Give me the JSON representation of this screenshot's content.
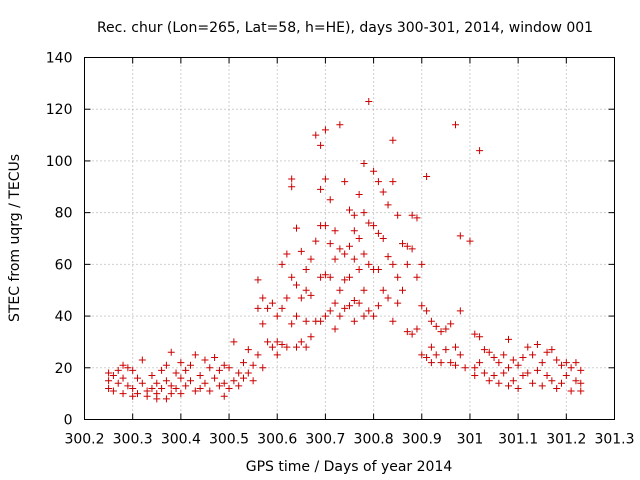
{
  "chart_data": {
    "type": "scatter",
    "title": "Rec. chur (Lon=265, Lat=58, h=HE), days 300-301, 2014, window 001",
    "xlabel": "GPS time / Days of year 2014",
    "ylabel": "STEC from uqrg / TECUs",
    "xlim": [
      300.2,
      301.3
    ],
    "ylim": [
      0,
      140
    ],
    "xticks": [
      "300.2",
      "300.3",
      "300.4",
      "300.5",
      "300.6",
      "300.7",
      "300.8",
      "300.9",
      "301",
      "301.1",
      "301.2",
      "301.3"
    ],
    "yticks": [
      "0",
      "20",
      "40",
      "60",
      "80",
      "100",
      "120",
      "140"
    ],
    "grid": true,
    "marker": "+",
    "color": "#cc0000",
    "series": [
      {
        "points": [
          [
            300.25,
            18
          ],
          [
            300.25,
            15
          ],
          [
            300.25,
            12
          ],
          [
            300.26,
            17
          ],
          [
            300.26,
            11
          ],
          [
            300.27,
            19
          ],
          [
            300.27,
            14
          ],
          [
            300.28,
            21
          ],
          [
            300.28,
            16
          ],
          [
            300.28,
            10
          ],
          [
            300.29,
            20
          ],
          [
            300.29,
            13
          ],
          [
            300.3,
            19
          ],
          [
            300.3,
            12
          ],
          [
            300.3,
            9
          ],
          [
            300.31,
            16
          ],
          [
            300.31,
            10
          ],
          [
            300.32,
            23
          ],
          [
            300.32,
            14
          ],
          [
            300.33,
            11
          ],
          [
            300.33,
            9
          ],
          [
            300.34,
            17
          ],
          [
            300.34,
            12
          ],
          [
            300.35,
            14
          ],
          [
            300.35,
            10
          ],
          [
            300.35,
            8
          ],
          [
            300.36,
            19
          ],
          [
            300.36,
            12
          ],
          [
            300.37,
            21
          ],
          [
            300.37,
            15
          ],
          [
            300.37,
            8
          ],
          [
            300.38,
            26
          ],
          [
            300.38,
            13
          ],
          [
            300.38,
            10
          ],
          [
            300.39,
            18
          ],
          [
            300.39,
            12
          ],
          [
            300.4,
            22
          ],
          [
            300.4,
            16
          ],
          [
            300.4,
            10
          ],
          [
            300.41,
            19
          ],
          [
            300.41,
            13
          ],
          [
            300.42,
            21
          ],
          [
            300.42,
            15
          ],
          [
            300.43,
            25
          ],
          [
            300.43,
            11
          ],
          [
            300.44,
            17
          ],
          [
            300.44,
            12
          ],
          [
            300.45,
            23
          ],
          [
            300.45,
            14
          ],
          [
            300.46,
            20
          ],
          [
            300.46,
            11
          ],
          [
            300.47,
            24
          ],
          [
            300.47,
            16
          ],
          [
            300.48,
            19
          ],
          [
            300.48,
            13
          ],
          [
            300.49,
            21
          ],
          [
            300.49,
            14
          ],
          [
            300.49,
            9
          ],
          [
            300.5,
            20
          ],
          [
            300.5,
            12
          ],
          [
            300.51,
            30
          ],
          [
            300.51,
            15
          ],
          [
            300.52,
            18
          ],
          [
            300.52,
            13
          ],
          [
            300.53,
            22
          ],
          [
            300.53,
            16
          ],
          [
            300.54,
            27
          ],
          [
            300.54,
            18
          ],
          [
            300.55,
            21
          ],
          [
            300.55,
            15
          ],
          [
            300.56,
            54
          ],
          [
            300.56,
            43
          ],
          [
            300.56,
            25
          ],
          [
            300.57,
            47
          ],
          [
            300.57,
            37
          ],
          [
            300.57,
            20
          ],
          [
            300.58,
            43
          ],
          [
            300.58,
            30
          ],
          [
            300.59,
            45
          ],
          [
            300.59,
            28
          ],
          [
            300.6,
            40
          ],
          [
            300.6,
            30
          ],
          [
            300.6,
            25
          ],
          [
            300.61,
            60
          ],
          [
            300.61,
            43
          ],
          [
            300.61,
            29
          ],
          [
            300.62,
            64
          ],
          [
            300.62,
            47
          ],
          [
            300.62,
            28
          ],
          [
            300.63,
            93
          ],
          [
            300.63,
            90
          ],
          [
            300.63,
            55
          ],
          [
            300.63,
            37
          ],
          [
            300.64,
            74
          ],
          [
            300.64,
            52
          ],
          [
            300.64,
            40
          ],
          [
            300.64,
            28
          ],
          [
            300.65,
            65
          ],
          [
            300.65,
            47
          ],
          [
            300.65,
            30
          ],
          [
            300.66,
            58
          ],
          [
            300.66,
            50
          ],
          [
            300.66,
            38
          ],
          [
            300.66,
            28
          ],
          [
            300.67,
            62
          ],
          [
            300.67,
            48
          ],
          [
            300.67,
            32
          ],
          [
            300.68,
            110
          ],
          [
            300.68,
            69
          ],
          [
            300.68,
            38
          ],
          [
            300.69,
            106
          ],
          [
            300.69,
            89
          ],
          [
            300.69,
            75
          ],
          [
            300.69,
            55
          ],
          [
            300.69,
            38
          ],
          [
            300.7,
            112
          ],
          [
            300.7,
            93
          ],
          [
            300.7,
            75
          ],
          [
            300.7,
            56
          ],
          [
            300.7,
            40
          ],
          [
            300.71,
            85
          ],
          [
            300.71,
            68
          ],
          [
            300.71,
            55
          ],
          [
            300.71,
            42
          ],
          [
            300.72,
            73
          ],
          [
            300.72,
            62
          ],
          [
            300.72,
            45
          ],
          [
            300.72,
            35
          ],
          [
            300.73,
            114
          ],
          [
            300.73,
            66
          ],
          [
            300.73,
            50
          ],
          [
            300.73,
            40
          ],
          [
            300.74,
            92
          ],
          [
            300.74,
            64
          ],
          [
            300.74,
            54
          ],
          [
            300.74,
            43
          ],
          [
            300.75,
            81
          ],
          [
            300.75,
            67
          ],
          [
            300.75,
            55
          ],
          [
            300.75,
            44
          ],
          [
            300.76,
            79
          ],
          [
            300.76,
            73
          ],
          [
            300.76,
            62
          ],
          [
            300.76,
            46
          ],
          [
            300.76,
            38
          ],
          [
            300.77,
            87
          ],
          [
            300.77,
            70
          ],
          [
            300.77,
            58
          ],
          [
            300.77,
            45
          ],
          [
            300.78,
            99
          ],
          [
            300.78,
            80
          ],
          [
            300.78,
            64
          ],
          [
            300.78,
            50
          ],
          [
            300.78,
            40
          ],
          [
            300.79,
            123
          ],
          [
            300.79,
            76
          ],
          [
            300.79,
            60
          ],
          [
            300.79,
            42
          ],
          [
            300.8,
            96
          ],
          [
            300.8,
            75
          ],
          [
            300.8,
            58
          ],
          [
            300.8,
            40
          ],
          [
            300.81,
            92
          ],
          [
            300.81,
            72
          ],
          [
            300.81,
            58
          ],
          [
            300.81,
            44
          ],
          [
            300.82,
            88
          ],
          [
            300.82,
            70
          ],
          [
            300.82,
            50
          ],
          [
            300.83,
            83
          ],
          [
            300.83,
            63
          ],
          [
            300.83,
            47
          ],
          [
            300.84,
            108
          ],
          [
            300.84,
            92
          ],
          [
            300.84,
            60
          ],
          [
            300.84,
            38
          ],
          [
            300.85,
            79
          ],
          [
            300.85,
            55
          ],
          [
            300.85,
            45
          ],
          [
            300.86,
            68
          ],
          [
            300.86,
            50
          ],
          [
            300.87,
            67
          ],
          [
            300.87,
            60
          ],
          [
            300.87,
            34
          ],
          [
            300.88,
            79
          ],
          [
            300.88,
            66
          ],
          [
            300.88,
            33
          ],
          [
            300.89,
            78
          ],
          [
            300.89,
            55
          ],
          [
            300.89,
            35
          ],
          [
            300.9,
            60
          ],
          [
            300.9,
            44
          ],
          [
            300.9,
            25
          ],
          [
            300.91,
            94
          ],
          [
            300.91,
            42
          ],
          [
            300.91,
            24
          ],
          [
            300.92,
            38
          ],
          [
            300.92,
            28
          ],
          [
            300.92,
            22
          ],
          [
            300.93,
            36
          ],
          [
            300.93,
            25
          ],
          [
            300.94,
            34
          ],
          [
            300.94,
            22
          ],
          [
            300.95,
            35
          ],
          [
            300.95,
            27
          ],
          [
            300.96,
            37
          ],
          [
            300.96,
            22
          ],
          [
            300.97,
            114
          ],
          [
            300.97,
            28
          ],
          [
            300.97,
            21
          ],
          [
            300.98,
            71
          ],
          [
            300.98,
            42
          ],
          [
            300.98,
            25
          ],
          [
            300.99,
            20
          ],
          [
            301.0,
            69
          ],
          [
            301.01,
            33
          ],
          [
            301.01,
            20
          ],
          [
            301.01,
            17
          ],
          [
            301.02,
            104
          ],
          [
            301.02,
            32
          ],
          [
            301.02,
            22
          ],
          [
            301.03,
            27
          ],
          [
            301.03,
            18
          ],
          [
            301.04,
            26
          ],
          [
            301.04,
            15
          ],
          [
            301.05,
            24
          ],
          [
            301.05,
            17
          ],
          [
            301.06,
            22
          ],
          [
            301.06,
            14
          ],
          [
            301.07,
            25
          ],
          [
            301.07,
            18
          ],
          [
            301.08,
            31
          ],
          [
            301.08,
            20
          ],
          [
            301.08,
            13
          ],
          [
            301.09,
            23
          ],
          [
            301.09,
            15
          ],
          [
            301.1,
            21
          ],
          [
            301.1,
            12
          ],
          [
            301.11,
            24
          ],
          [
            301.11,
            17
          ],
          [
            301.12,
            28
          ],
          [
            301.12,
            18
          ],
          [
            301.13,
            25
          ],
          [
            301.13,
            14
          ],
          [
            301.14,
            29
          ],
          [
            301.14,
            19
          ],
          [
            301.15,
            22
          ],
          [
            301.15,
            13
          ],
          [
            301.16,
            26
          ],
          [
            301.16,
            17
          ],
          [
            301.17,
            27
          ],
          [
            301.17,
            15
          ],
          [
            301.18,
            23
          ],
          [
            301.18,
            12
          ],
          [
            301.19,
            21
          ],
          [
            301.19,
            14
          ],
          [
            301.2,
            22
          ],
          [
            301.2,
            17
          ],
          [
            301.21,
            20
          ],
          [
            301.21,
            11
          ],
          [
            301.22,
            22
          ],
          [
            301.22,
            15
          ],
          [
            301.23,
            19
          ],
          [
            301.23,
            14
          ],
          [
            301.23,
            11
          ]
        ]
      }
    ]
  }
}
